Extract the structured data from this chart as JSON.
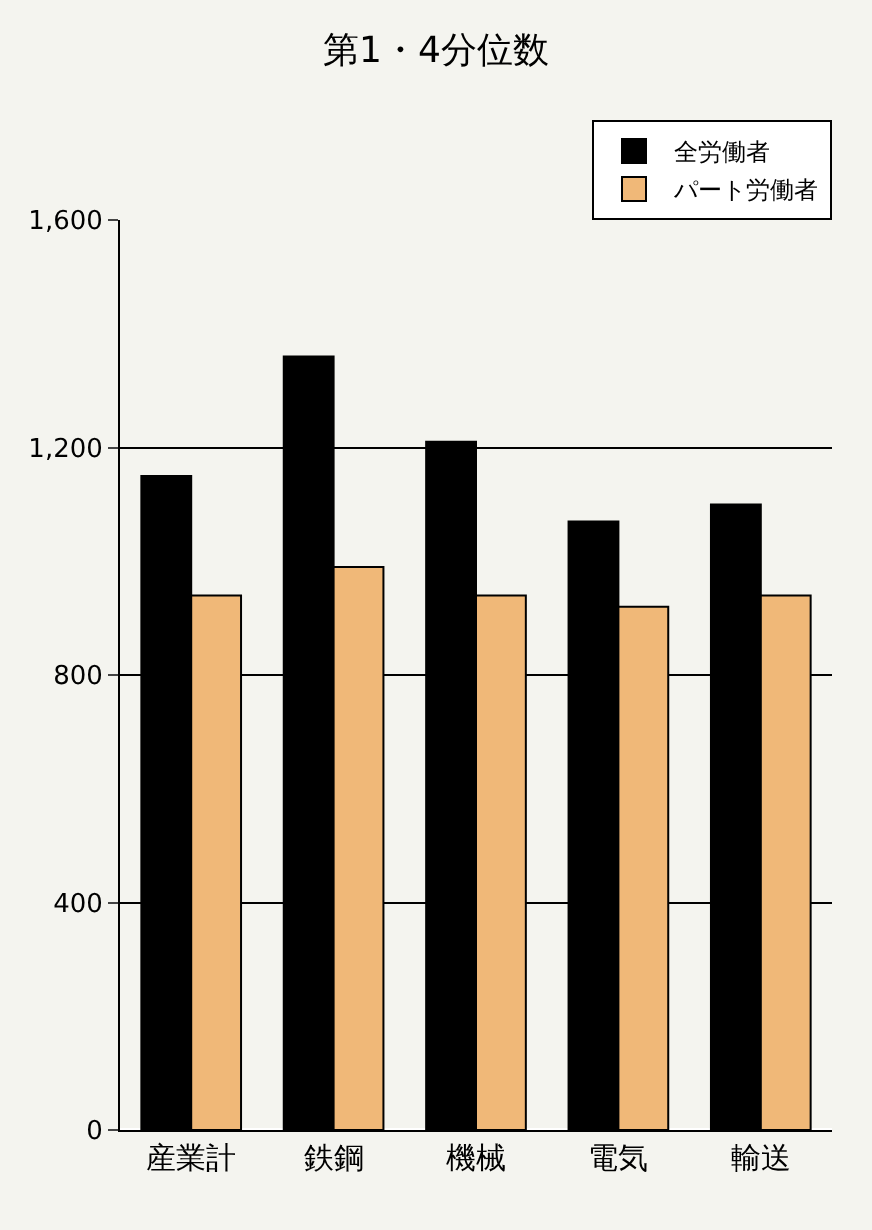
{
  "chart_data": {
    "type": "bar",
    "title": "第1・4分位数",
    "categories": [
      "産業計",
      "鉄鋼",
      "機械",
      "電気",
      "輸送"
    ],
    "series": [
      {
        "name": "全労働者",
        "color": "#000000",
        "values": [
          1150,
          1360,
          1210,
          1070,
          1100
        ]
      },
      {
        "name": "パート労働者",
        "color": "#f0b878",
        "values": [
          940,
          990,
          940,
          920,
          940
        ]
      }
    ],
    "ylim": [
      0,
      1600
    ],
    "yticks": [
      0,
      400,
      800,
      {
        "value": 1200,
        "label": "1,200"
      },
      {
        "value": 1600,
        "label": "1,600"
      }
    ],
    "grid": "y",
    "legend": "top right"
  }
}
